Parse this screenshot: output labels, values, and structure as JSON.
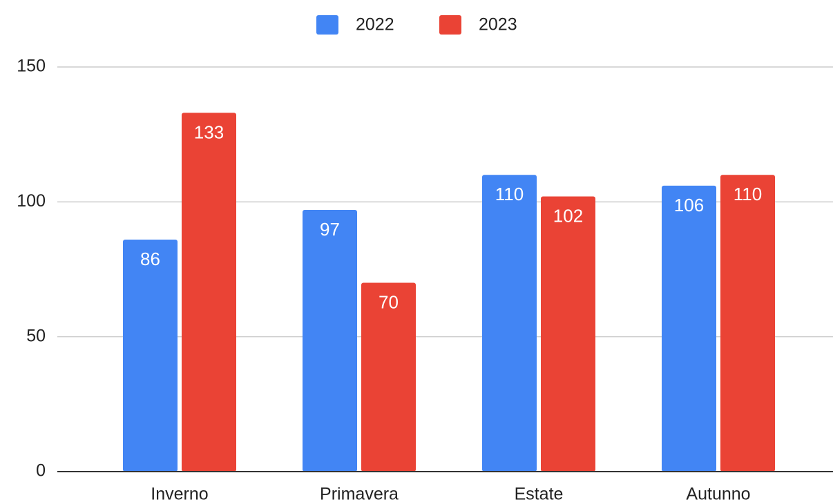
{
  "chart_data": {
    "type": "bar",
    "categories": [
      "Inverno",
      "Primavera",
      "Estate",
      "Autunno"
    ],
    "series": [
      {
        "name": "2022",
        "color": "#4285f4",
        "values": [
          86,
          97,
          110,
          106
        ]
      },
      {
        "name": "2023",
        "color": "#ea4335",
        "values": [
          133,
          70,
          102,
          110
        ]
      }
    ],
    "ylim": [
      0,
      150
    ],
    "yticks": [
      0,
      50,
      100,
      150
    ],
    "grid": true,
    "legend": "top"
  }
}
